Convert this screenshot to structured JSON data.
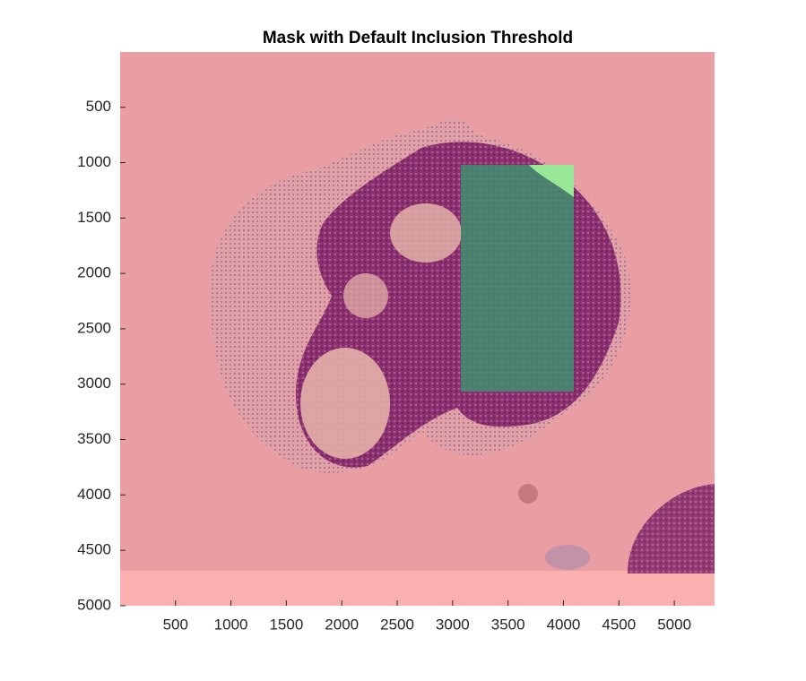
{
  "chart_data": {
    "type": "image",
    "title": "Mask with Default Inclusion Threshold",
    "xlim": [
      0.5,
      5363
    ],
    "ylim": [
      0.5,
      5000.5
    ],
    "ydir": "reverse",
    "xticks": [
      500,
      1000,
      1500,
      2000,
      2500,
      3000,
      3500,
      4000,
      4500,
      5000
    ],
    "yticks": [
      500,
      1000,
      1500,
      2000,
      2500,
      3000,
      3500,
      4000,
      4500,
      5000
    ]
  }
}
